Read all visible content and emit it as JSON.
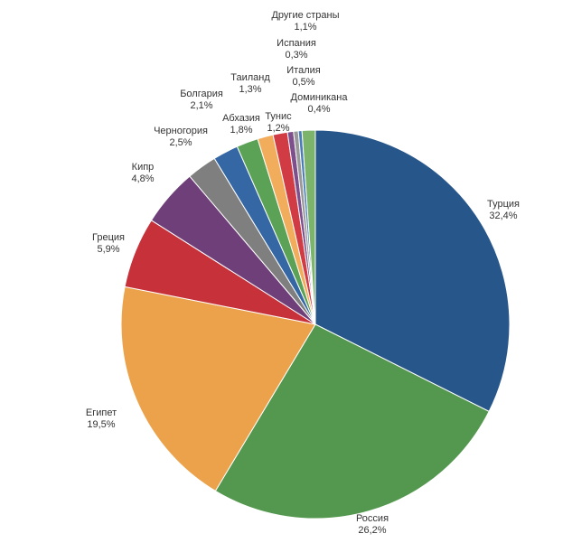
{
  "chart_data": {
    "type": "pie",
    "title": "",
    "start_angle_deg": 0,
    "direction": "clockwise",
    "legend": "none",
    "slices": [
      {
        "label": "Турция",
        "value": 32.4,
        "value_label": "32,4%",
        "color": "#27568B"
      },
      {
        "label": "Россия",
        "value": 26.2,
        "value_label": "26,2%",
        "color": "#54984F"
      },
      {
        "label": "Египет",
        "value": 19.5,
        "value_label": "19,5%",
        "color": "#ECA24B"
      },
      {
        "label": "Греция",
        "value": 5.9,
        "value_label": "5,9%",
        "color": "#C7313A"
      },
      {
        "label": "Кипр",
        "value": 4.8,
        "value_label": "4,8%",
        "color": "#6F3F7A"
      },
      {
        "label": "Черногория",
        "value": 2.5,
        "value_label": "2,5%",
        "color": "#7F7F7F"
      },
      {
        "label": "Болгария",
        "value": 2.1,
        "value_label": "2,1%",
        "color": "#3467A4"
      },
      {
        "label": "Абхазия",
        "value": 1.8,
        "value_label": "1,8%",
        "color": "#5CA256"
      },
      {
        "label": "Таиланд",
        "value": 1.3,
        "value_label": "1,3%",
        "color": "#F2AD5C"
      },
      {
        "label": "Тунис",
        "value": 1.2,
        "value_label": "1,2%",
        "color": "#D13B43"
      },
      {
        "label": "Италия",
        "value": 0.5,
        "value_label": "0,5%",
        "color": "#7D4F8C"
      },
      {
        "label": "Доминикана",
        "value": 0.4,
        "value_label": "0,4%",
        "color": "#999999"
      },
      {
        "label": "Испания",
        "value": 0.3,
        "value_label": "0,3%",
        "color": "#4A7DB8"
      },
      {
        "label": "Другие страны",
        "value": 1.1,
        "value_label": "1,1%",
        "color": "#7DB46C"
      }
    ]
  }
}
